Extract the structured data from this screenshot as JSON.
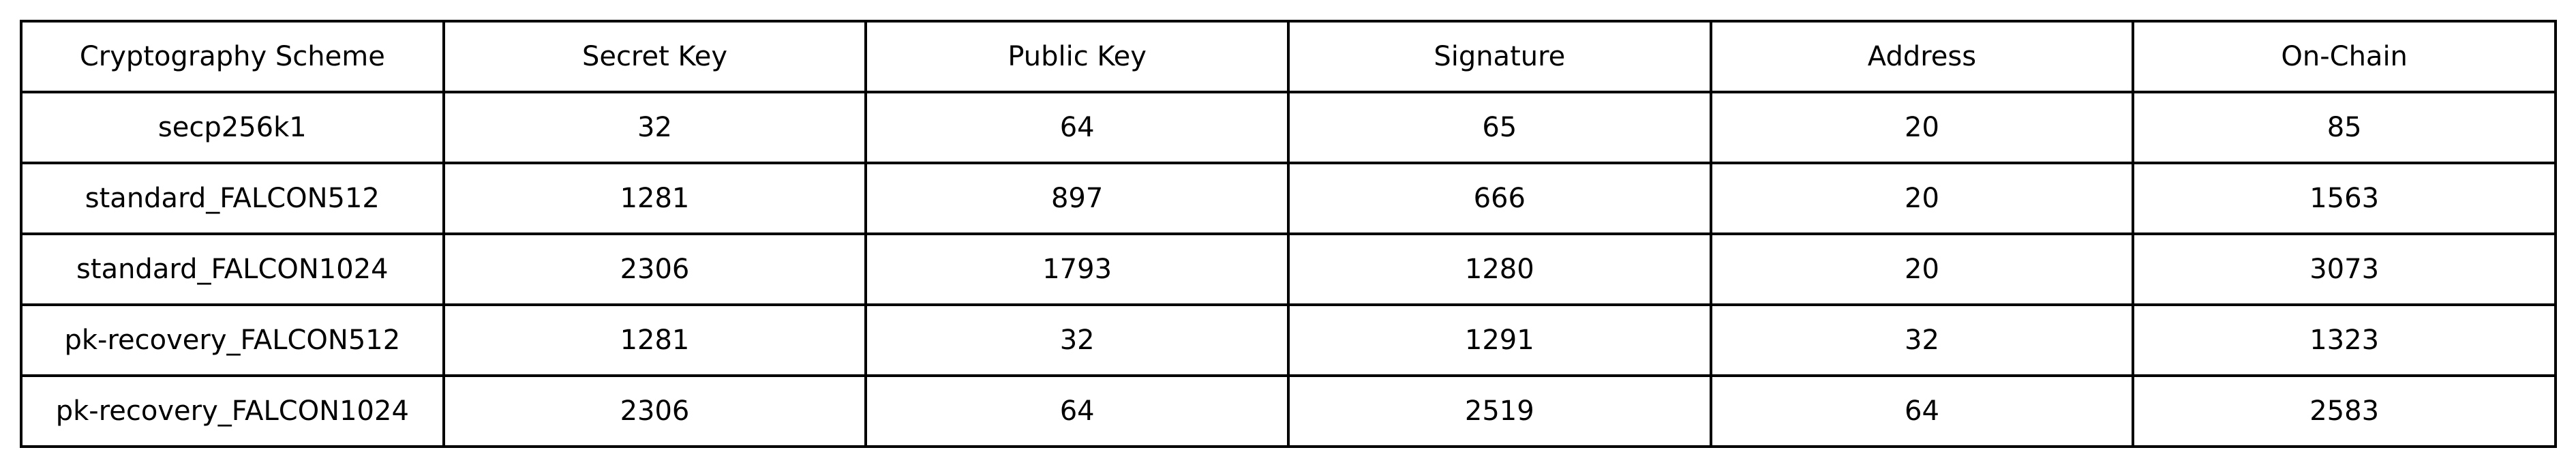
{
  "chart_data": {
    "type": "table",
    "columns": [
      "Cryptography Scheme",
      "Secret Key",
      "Public Key",
      "Signature",
      "Address",
      "On-Chain"
    ],
    "rows": [
      [
        "secp256k1",
        "32",
        "64",
        "65",
        "20",
        "85"
      ],
      [
        "standard_FALCON512",
        "1281",
        "897",
        "666",
        "20",
        "1563"
      ],
      [
        "standard_FALCON1024",
        "2306",
        "1793",
        "1280",
        "20",
        "3073"
      ],
      [
        "pk-recovery_FALCON512",
        "1281",
        "32",
        "1291",
        "32",
        "1323"
      ],
      [
        "pk-recovery_FALCON1024",
        "2306",
        "64",
        "2519",
        "64",
        "2583"
      ]
    ]
  },
  "colors": {
    "border": "#000000",
    "background": "#ffffff",
    "text": "#000000"
  }
}
